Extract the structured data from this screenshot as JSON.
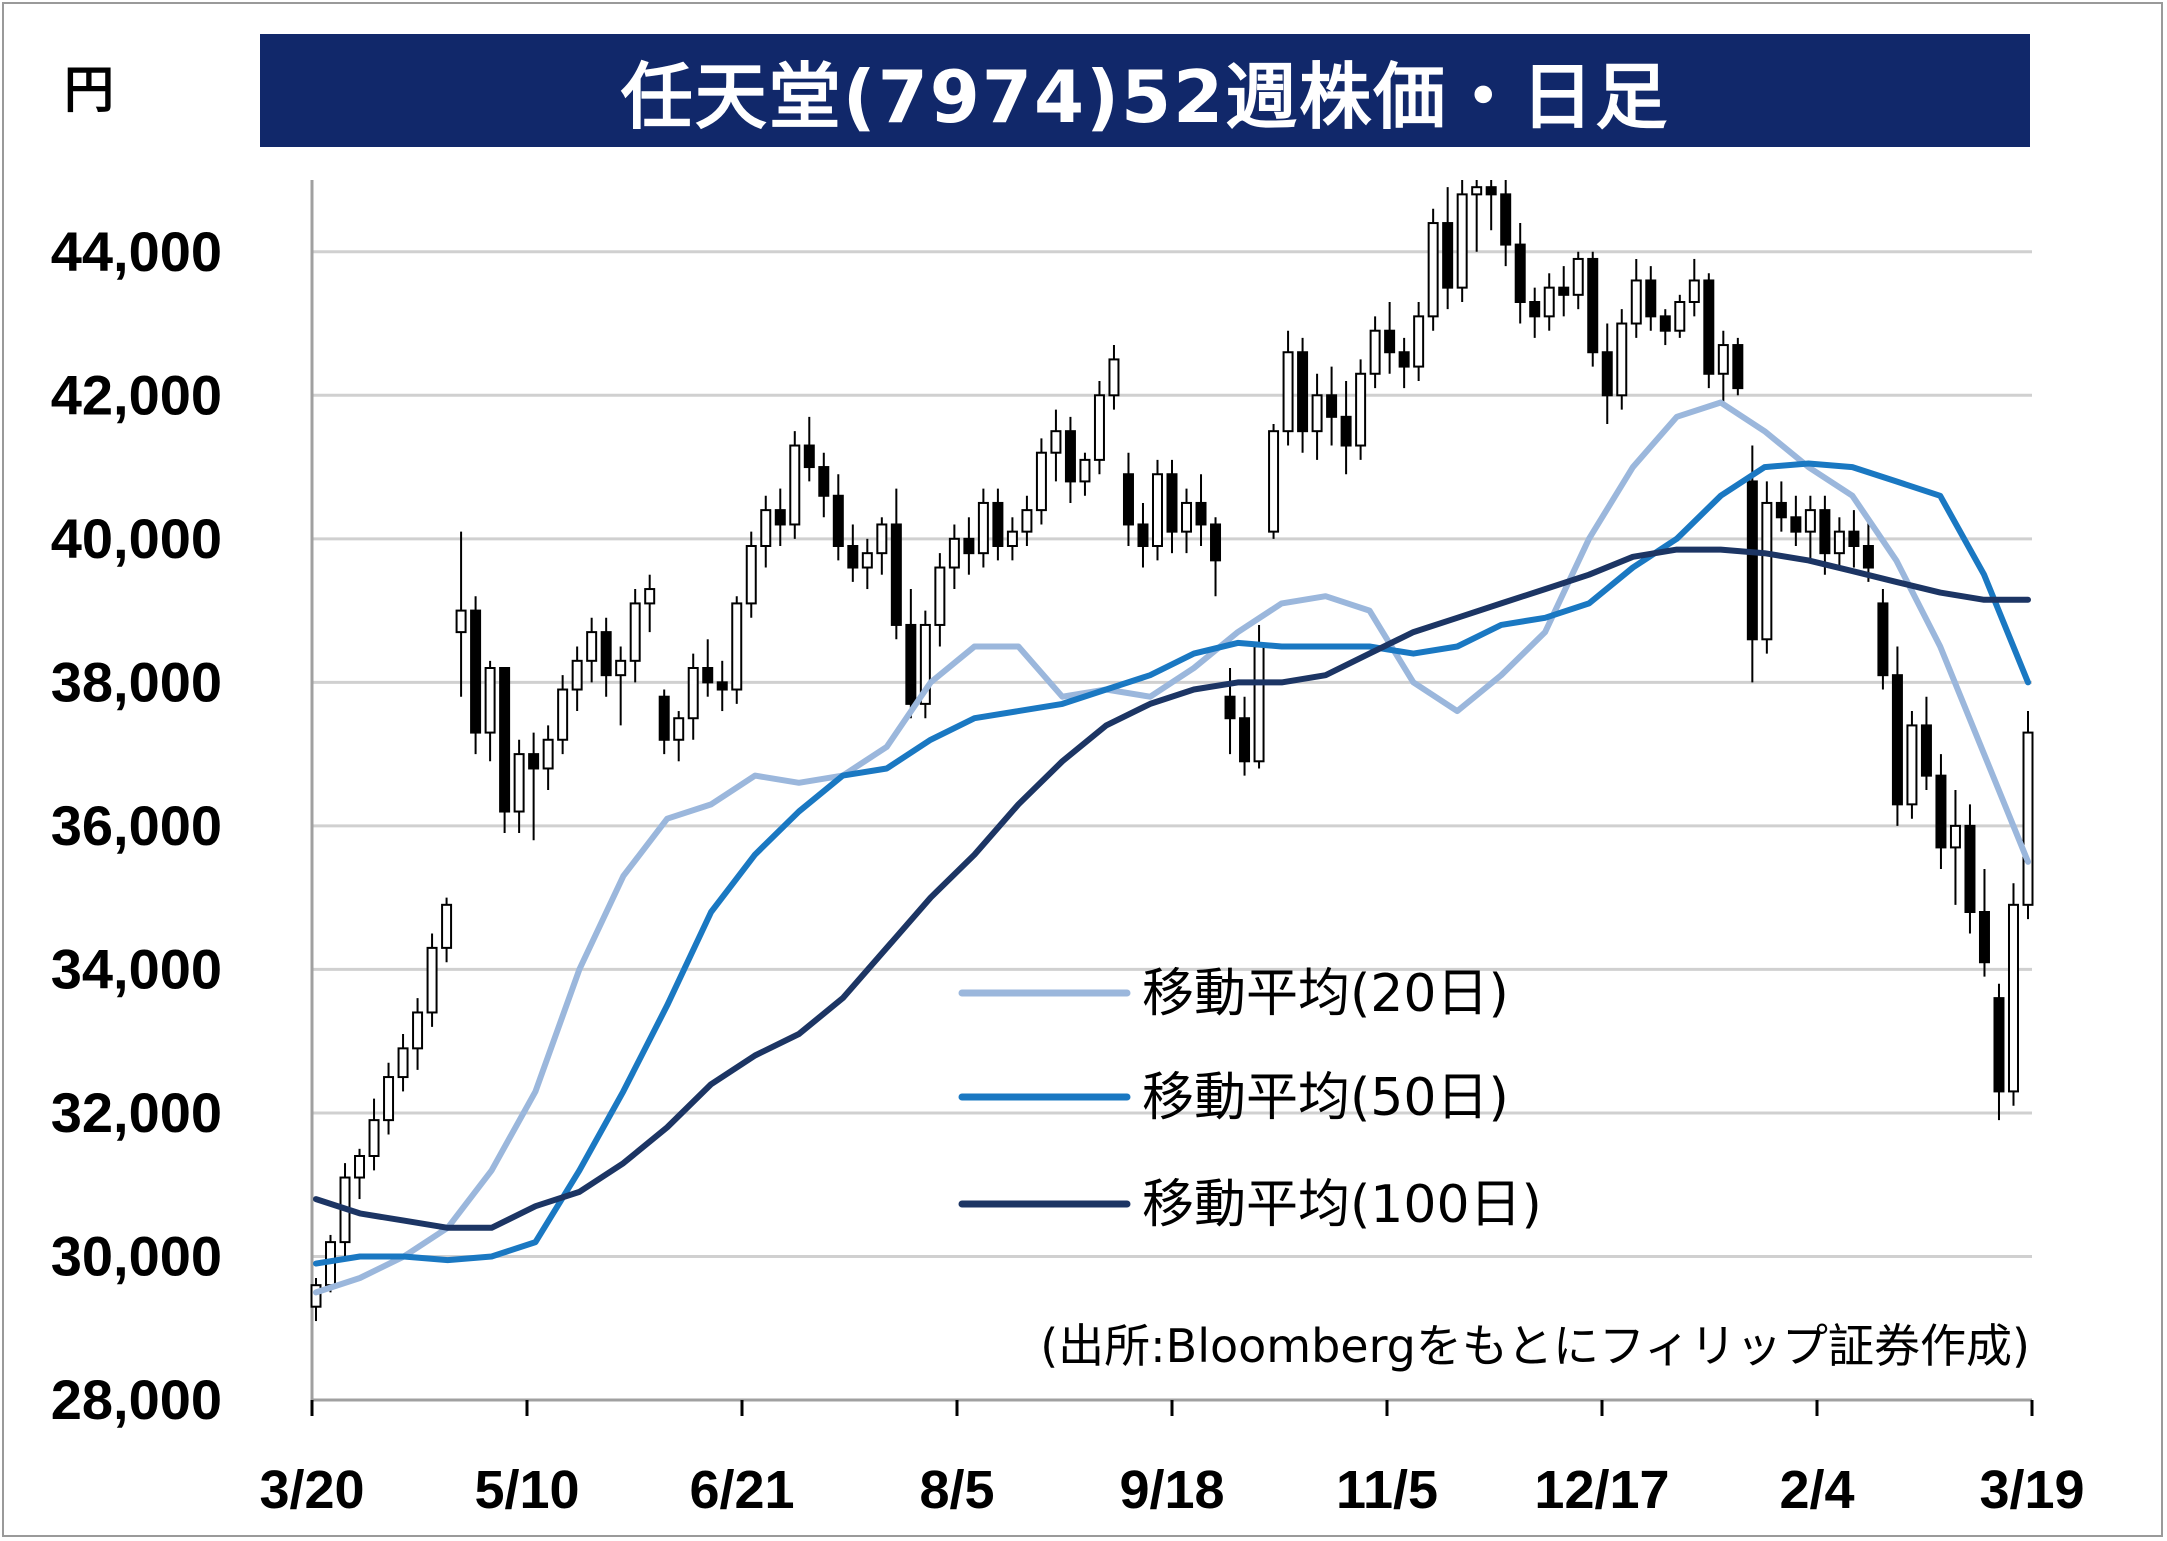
{
  "chart_data": {
    "type": "candlestick",
    "title": "任天堂(7974)52週株価・日足",
    "unit": "円",
    "source": "(出所:Bloombergをもとにフィリップ証券作成)",
    "ylim": [
      28000,
      45000
    ],
    "yticks": [
      "28,000",
      "30,000",
      "32,000",
      "34,000",
      "36,000",
      "38,000",
      "40,000",
      "42,000",
      "44,000"
    ],
    "ytick_values": [
      28000,
      30000,
      32000,
      34000,
      36000,
      38000,
      40000,
      42000,
      44000
    ],
    "xticks": [
      "3/20",
      "5/10",
      "6/21",
      "8/5",
      "9/18",
      "11/5",
      "12/17",
      "2/4",
      "3/19"
    ],
    "grid": true,
    "legend_position": "center-right",
    "series": [
      {
        "name": "移動平均(20日)",
        "color": "#9bb7dc",
        "values": [
          29500,
          29700,
          30000,
          30400,
          31200,
          32300,
          34000,
          35300,
          36100,
          36300,
          36700,
          36600,
          36700,
          37100,
          38000,
          38500,
          38500,
          37800,
          37900,
          37800,
          38200,
          38700,
          39100,
          39200,
          39000,
          38000,
          37600,
          38100,
          38700,
          40000,
          41000,
          41700,
          41900,
          41500,
          41000,
          40600,
          39700,
          38500,
          37000,
          35500
        ]
      },
      {
        "name": "移動平均(50日)",
        "color": "#1a78c2",
        "values": [
          29900,
          30000,
          30000,
          29950,
          30000,
          30200,
          31200,
          32300,
          33500,
          34800,
          35600,
          36200,
          36700,
          36800,
          37200,
          37500,
          37600,
          37700,
          37900,
          38100,
          38400,
          38550,
          38500,
          38500,
          38500,
          38400,
          38500,
          38800,
          38900,
          39100,
          39600,
          40000,
          40600,
          41000,
          41050,
          41000,
          40800,
          40600,
          39500,
          38000
        ]
      },
      {
        "name": "移動平均(100日)",
        "color": "#1c3564",
        "values": [
          30800,
          30600,
          30500,
          30400,
          30400,
          30700,
          30900,
          31300,
          31800,
          32400,
          32800,
          33100,
          33600,
          34300,
          35000,
          35600,
          36300,
          36900,
          37400,
          37700,
          37900,
          38000,
          38000,
          38100,
          38400,
          38700,
          38900,
          39100,
          39300,
          39500,
          39750,
          39850,
          39850,
          39800,
          39700,
          39550,
          39400,
          39250,
          39150,
          39150
        ]
      }
    ],
    "candles_ohlc": [
      [
        29300,
        29700,
        29100,
        29600
      ],
      [
        29600,
        30300,
        29500,
        30200
      ],
      [
        30200,
        31300,
        30000,
        31100
      ],
      [
        31100,
        31500,
        30800,
        31400
      ],
      [
        31400,
        32200,
        31200,
        31900
      ],
      [
        31900,
        32700,
        31700,
        32500
      ],
      [
        32500,
        33100,
        32300,
        32900
      ],
      [
        32900,
        33600,
        32600,
        33400
      ],
      [
        33400,
        34500,
        33200,
        34300
      ],
      [
        34300,
        35000,
        34100,
        34900
      ],
      [
        38700,
        40100,
        37800,
        39000
      ],
      [
        39000,
        39200,
        37000,
        37300
      ],
      [
        37300,
        38300,
        36900,
        38200
      ],
      [
        38200,
        38200,
        35900,
        36200
      ],
      [
        36200,
        37200,
        35900,
        37000
      ],
      [
        37000,
        37300,
        35800,
        36800
      ],
      [
        36800,
        37400,
        36500,
        37200
      ],
      [
        37200,
        38100,
        37000,
        37900
      ],
      [
        37900,
        38500,
        37600,
        38300
      ],
      [
        38300,
        38900,
        38000,
        38700
      ],
      [
        38700,
        38900,
        37800,
        38100
      ],
      [
        38100,
        38500,
        37400,
        38300
      ],
      [
        38300,
        39300,
        38000,
        39100
      ],
      [
        39100,
        39500,
        38700,
        39300
      ],
      [
        37800,
        37900,
        37000,
        37200
      ],
      [
        37200,
        37600,
        36900,
        37500
      ],
      [
        37500,
        38400,
        37200,
        38200
      ],
      [
        38200,
        38600,
        37800,
        38000
      ],
      [
        38000,
        38300,
        37600,
        37900
      ],
      [
        37900,
        39200,
        37700,
        39100
      ],
      [
        39100,
        40100,
        38900,
        39900
      ],
      [
        39900,
        40600,
        39600,
        40400
      ],
      [
        40400,
        40700,
        39900,
        40200
      ],
      [
        40200,
        41500,
        40000,
        41300
      ],
      [
        41300,
        41700,
        40800,
        41000
      ],
      [
        41000,
        41200,
        40300,
        40600
      ],
      [
        40600,
        40900,
        39700,
        39900
      ],
      [
        39900,
        40200,
        39400,
        39600
      ],
      [
        39600,
        40000,
        39300,
        39800
      ],
      [
        39800,
        40300,
        39500,
        40200
      ],
      [
        40200,
        40700,
        38600,
        38800
      ],
      [
        38800,
        39300,
        37500,
        37700
      ],
      [
        37700,
        39000,
        37500,
        38800
      ],
      [
        38800,
        39800,
        38500,
        39600
      ],
      [
        39600,
        40200,
        39300,
        40000
      ],
      [
        40000,
        40300,
        39500,
        39800
      ],
      [
        39800,
        40700,
        39600,
        40500
      ],
      [
        40500,
        40700,
        39700,
        39900
      ],
      [
        39900,
        40300,
        39700,
        40100
      ],
      [
        40100,
        40600,
        39900,
        40400
      ],
      [
        40400,
        41400,
        40200,
        41200
      ],
      [
        41200,
        41800,
        40800,
        41500
      ],
      [
        41500,
        41700,
        40500,
        40800
      ],
      [
        40800,
        41200,
        40600,
        41100
      ],
      [
        41100,
        42200,
        40900,
        42000
      ],
      [
        42000,
        42700,
        41800,
        42500
      ],
      [
        40900,
        41200,
        39900,
        40200
      ],
      [
        40200,
        40500,
        39600,
        39900
      ],
      [
        39900,
        41100,
        39700,
        40900
      ],
      [
        40900,
        41100,
        39800,
        40100
      ],
      [
        40100,
        40700,
        39800,
        40500
      ],
      [
        40500,
        40900,
        39900,
        40200
      ],
      [
        40200,
        40300,
        39200,
        39700
      ],
      [
        37800,
        38200,
        37000,
        37500
      ],
      [
        37500,
        37800,
        36700,
        36900
      ],
      [
        36900,
        38800,
        36800,
        38500
      ],
      [
        40100,
        41600,
        40000,
        41500
      ],
      [
        41500,
        42900,
        41300,
        42600
      ],
      [
        42600,
        42800,
        41200,
        41500
      ],
      [
        41500,
        42300,
        41100,
        42000
      ],
      [
        42000,
        42400,
        41300,
        41700
      ],
      [
        41700,
        42200,
        40900,
        41300
      ],
      [
        41300,
        42500,
        41100,
        42300
      ],
      [
        42300,
        43100,
        42100,
        42900
      ],
      [
        42900,
        43300,
        42300,
        42600
      ],
      [
        42600,
        42800,
        42100,
        42400
      ],
      [
        42400,
        43300,
        42200,
        43100
      ],
      [
        43100,
        44600,
        42900,
        44400
      ],
      [
        44400,
        44900,
        43200,
        43500
      ],
      [
        43500,
        45000,
        43300,
        44800
      ],
      [
        44800,
        45000,
        44000,
        44900
      ],
      [
        44900,
        45000,
        44300,
        44800
      ],
      [
        44800,
        45000,
        43800,
        44100
      ],
      [
        44100,
        44400,
        43000,
        43300
      ],
      [
        43300,
        43500,
        42800,
        43100
      ],
      [
        43100,
        43700,
        42900,
        43500
      ],
      [
        43500,
        43800,
        43100,
        43400
      ],
      [
        43400,
        44000,
        43200,
        43900
      ],
      [
        43900,
        44000,
        42400,
        42600
      ],
      [
        42600,
        43000,
        41600,
        42000
      ],
      [
        42000,
        43200,
        41800,
        43000
      ],
      [
        43000,
        43900,
        42800,
        43600
      ],
      [
        43600,
        43800,
        42900,
        43100
      ],
      [
        43100,
        43200,
        42700,
        42900
      ],
      [
        42900,
        43400,
        42800,
        43300
      ],
      [
        43300,
        43900,
        43100,
        43600
      ],
      [
        43600,
        43700,
        42100,
        42300
      ],
      [
        42300,
        42900,
        41900,
        42700
      ],
      [
        42700,
        42800,
        42000,
        42100
      ],
      [
        40800,
        41300,
        38000,
        38600
      ],
      [
        38600,
        40800,
        38400,
        40500
      ],
      [
        40500,
        40800,
        40100,
        40300
      ],
      [
        40300,
        40600,
        39900,
        40100
      ],
      [
        40100,
        40600,
        39700,
        40400
      ],
      [
        40400,
        40600,
        39500,
        39800
      ],
      [
        39800,
        40300,
        39600,
        40100
      ],
      [
        40100,
        40400,
        39600,
        39900
      ],
      [
        39900,
        40300,
        39400,
        39600
      ],
      [
        39100,
        39300,
        37900,
        38100
      ],
      [
        38100,
        38500,
        36000,
        36300
      ],
      [
        36300,
        37600,
        36100,
        37400
      ],
      [
        37400,
        37800,
        36500,
        36700
      ],
      [
        36700,
        37000,
        35400,
        35700
      ],
      [
        35700,
        36500,
        34900,
        36000
      ],
      [
        36000,
        36300,
        34500,
        34800
      ],
      [
        34800,
        35400,
        33900,
        34100
      ],
      [
        33600,
        33800,
        31900,
        32300
      ],
      [
        32300,
        35200,
        32100,
        34900
      ],
      [
        34900,
        37600,
        34700,
        37300
      ]
    ]
  },
  "legend_items": [
    "移動平均(20日)",
    "移動平均(50日)",
    "移動平均(100日)"
  ]
}
